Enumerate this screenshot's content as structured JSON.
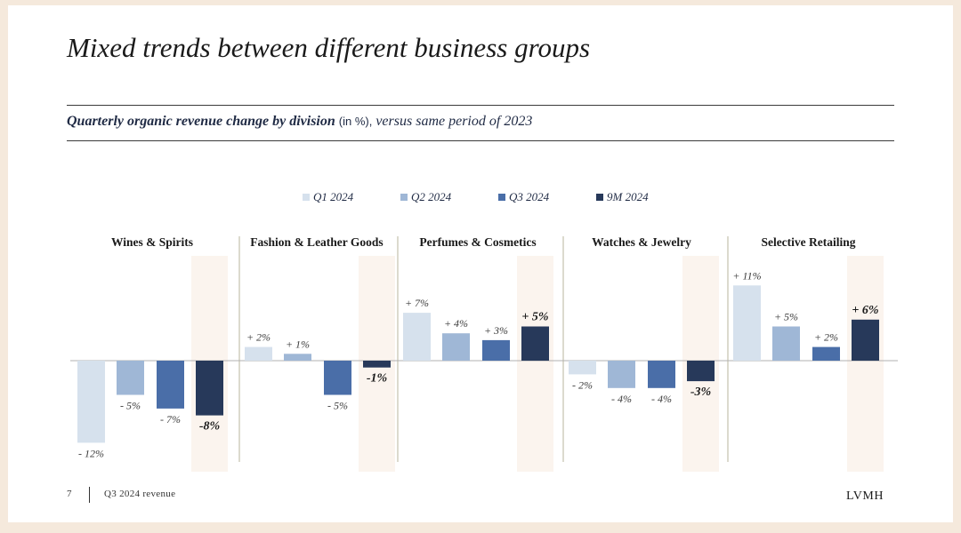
{
  "slide": {
    "title": "Mixed trends between different business groups",
    "subtitle_bold": "Quarterly organic revenue change by division",
    "subtitle_unit": "(in %),",
    "subtitle_rest": "versus same period of 2023",
    "page_number": "7",
    "footer_text": "Q3 2024 revenue",
    "logo": "LVMH"
  },
  "colors": {
    "q1": "#d6e1ed",
    "q2": "#9fb7d6",
    "q3": "#4a6ea8",
    "9m": "#27395a",
    "highlight": "#fbf4ee",
    "divider": "#b8b49c",
    "axis": "#b0b0b0"
  },
  "chart_data": {
    "type": "bar",
    "title": "Quarterly organic revenue change by division",
    "series": [
      {
        "name": "Q1 2024",
        "values": [
          -12,
          2,
          7,
          -2,
          11
        ]
      },
      {
        "name": "Q2 2024",
        "values": [
          -5,
          1,
          4,
          -4,
          5
        ]
      },
      {
        "name": "Q3 2024",
        "values": [
          -7,
          -5,
          3,
          -4,
          2
        ]
      },
      {
        "name": "9M 2024",
        "values": [
          -8,
          -1,
          5,
          -3,
          6
        ]
      }
    ],
    "categories": [
      "Wines & Spirits",
      "Fashion & Leather Goods",
      "Perfumes & Cosmetics",
      "Watches & Jewelry",
      "Selective Retailing"
    ],
    "data_labels": [
      [
        "- 12%",
        "- 5%",
        "- 7%",
        "-8%"
      ],
      [
        "+ 2%",
        "+ 1%",
        "- 5%",
        "-1%"
      ],
      [
        "+ 7%",
        "+ 4%",
        "+ 3%",
        "+ 5%"
      ],
      [
        "- 2%",
        "- 4%",
        "- 4%",
        "-3%"
      ],
      [
        "+ 11%",
        "+ 5%",
        "+ 2%",
        "+ 6%"
      ]
    ],
    "legend_position": "top",
    "grid": false,
    "ylim": [
      -13,
      12
    ]
  }
}
